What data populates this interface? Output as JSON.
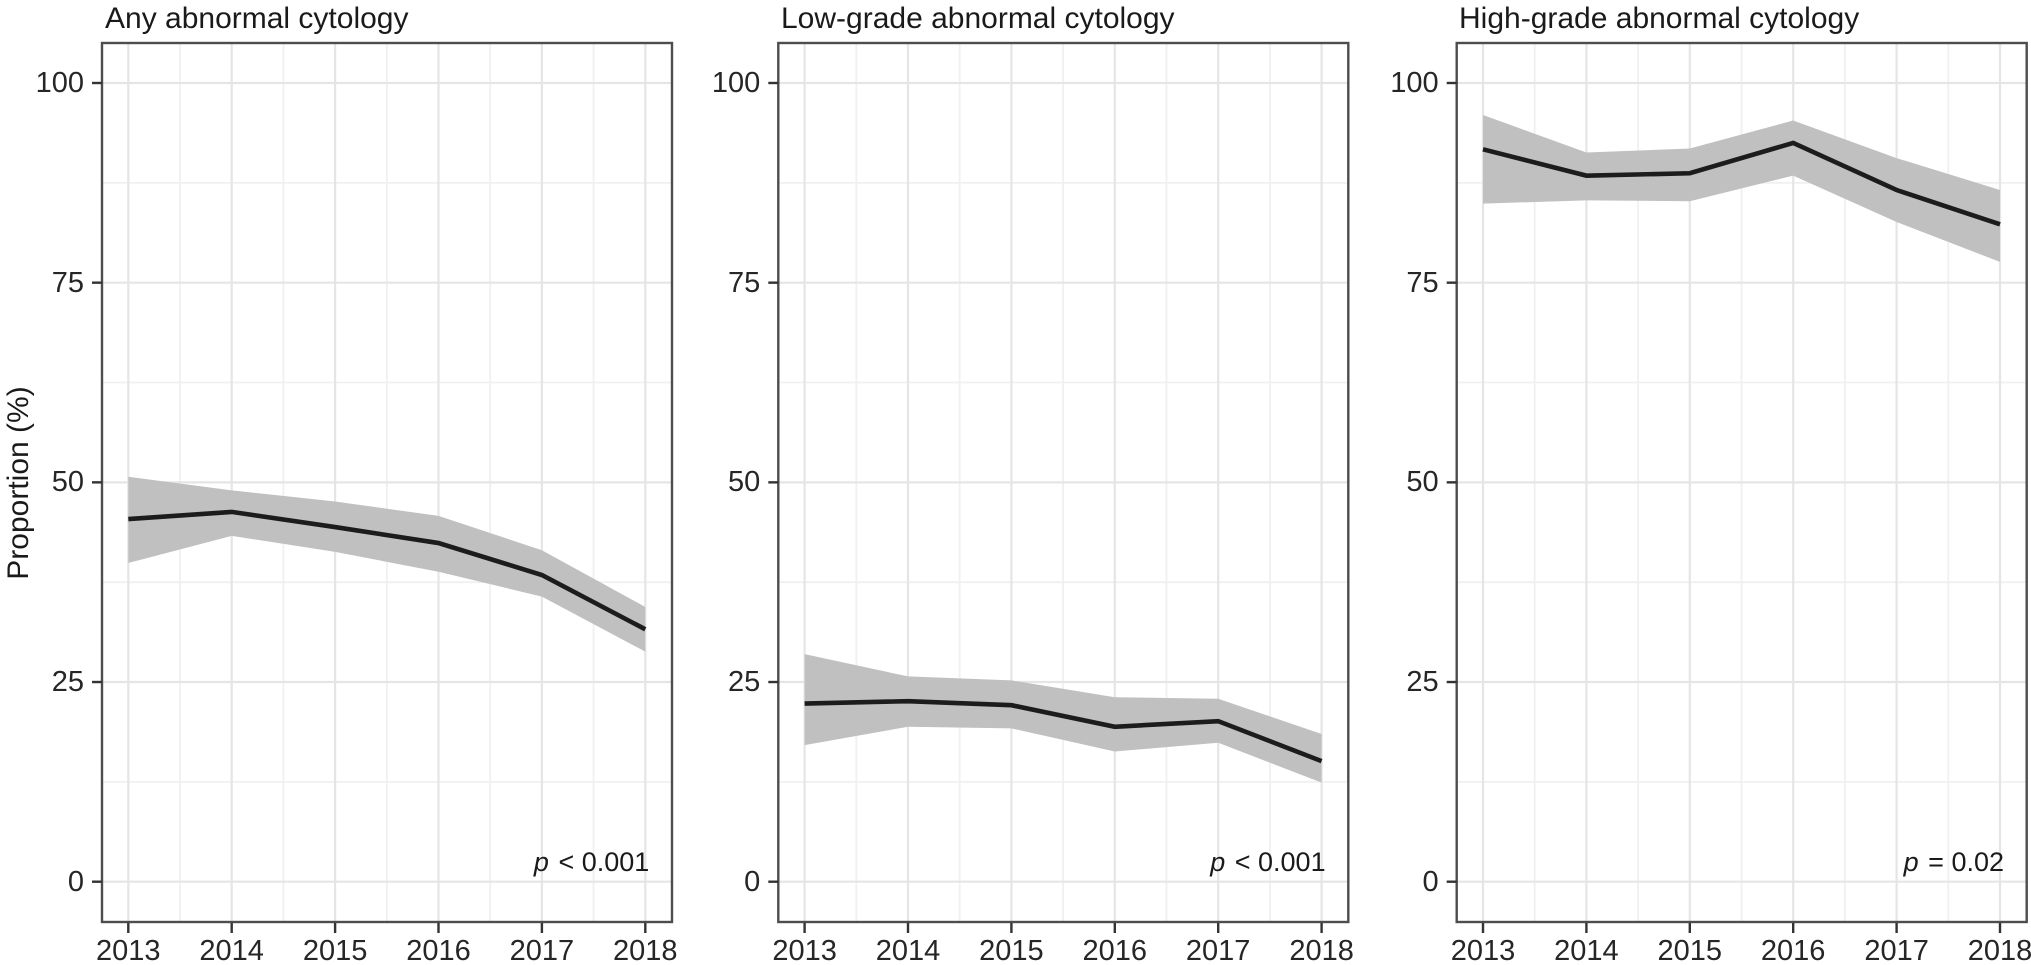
{
  "figure": {
    "ylabel": "Proportion (%)",
    "colors": {
      "line": "#1c1c1c",
      "ribbon": "#c0c0c0",
      "grid_major": "#e5e5e5",
      "grid_minor": "#f0f0f0",
      "panel_border": "#4d4d4d",
      "tick_mark": "#333333",
      "axis_text": "#262626",
      "title_text": "#1a1a1a",
      "background": "#ffffff"
    }
  },
  "chart_data": [
    {
      "type": "line",
      "title": "Any abnormal cytology",
      "x": [
        2013,
        2014,
        2015,
        2016,
        2017,
        2018
      ],
      "series": [
        {
          "name": "proportion",
          "values": [
            45.4,
            46.3,
            44.4,
            42.4,
            38.4,
            31.6
          ]
        },
        {
          "name": "ci_upper",
          "values": [
            50.7,
            49.0,
            47.6,
            45.8,
            41.5,
            34.4
          ]
        },
        {
          "name": "ci_lower",
          "values": [
            39.9,
            43.3,
            41.3,
            38.8,
            35.7,
            28.8
          ]
        }
      ],
      "annotation": "p < 0.001",
      "xlabel": "",
      "ylabel": "Proportion (%)",
      "ylim": [
        0,
        100
      ],
      "yticks": [
        0,
        25,
        50,
        75,
        100
      ],
      "grid": "major and minor, light gray",
      "legend": "none",
      "band_style": "gray confidence ribbon around black trend line"
    },
    {
      "type": "line",
      "title": "Low-grade abnormal cytology",
      "x": [
        2013,
        2014,
        2015,
        2016,
        2017,
        2018
      ],
      "series": [
        {
          "name": "proportion",
          "values": [
            22.3,
            22.6,
            22.1,
            19.4,
            20.1,
            15.1
          ]
        },
        {
          "name": "ci_upper",
          "values": [
            28.5,
            25.7,
            25.2,
            23.1,
            22.9,
            18.5
          ]
        },
        {
          "name": "ci_lower",
          "values": [
            17.1,
            19.4,
            19.2,
            16.3,
            17.4,
            12.4
          ]
        }
      ],
      "annotation": "p < 0.001",
      "xlabel": "",
      "ylabel": "Proportion (%)",
      "ylim": [
        0,
        100
      ],
      "yticks": [
        0,
        25,
        50,
        75,
        100
      ],
      "grid": "major and minor, light gray",
      "legend": "none",
      "band_style": "gray confidence ribbon around black trend line"
    },
    {
      "type": "line",
      "title": "High-grade abnormal cytology",
      "x": [
        2013,
        2014,
        2015,
        2016,
        2017,
        2018
      ],
      "series": [
        {
          "name": "proportion",
          "values": [
            91.7,
            88.4,
            88.7,
            92.5,
            86.6,
            82.3
          ]
        },
        {
          "name": "ci_upper",
          "values": [
            96.0,
            91.3,
            91.8,
            95.3,
            90.6,
            86.6
          ]
        },
        {
          "name": "ci_lower",
          "values": [
            84.9,
            85.3,
            85.2,
            88.4,
            82.6,
            77.6
          ]
        }
      ],
      "annotation": "p = 0.02",
      "xlabel": "",
      "ylabel": "Proportion (%)",
      "ylim": [
        0,
        100
      ],
      "yticks": [
        0,
        25,
        50,
        75,
        100
      ],
      "grid": "major and minor, light gray",
      "legend": "none",
      "band_style": "gray confidence ribbon around black trend line"
    }
  ]
}
